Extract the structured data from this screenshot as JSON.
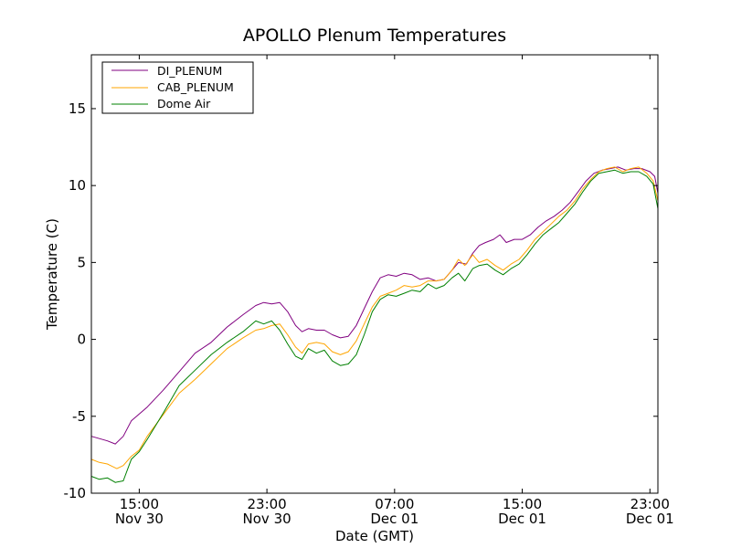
{
  "chart_data": {
    "type": "line",
    "title": "APOLLO Plenum Temperatures",
    "xlabel": "Date (GMT)",
    "ylabel": "Temperature (C)",
    "x_unit": "hours since Nov 30 00:00 GMT",
    "xlim": [
      12.0,
      47.5
    ],
    "ylim": [
      -10,
      18.5
    ],
    "grid": false,
    "legend_position": "top-left",
    "x_ticks": [
      {
        "value": 15,
        "time": "15:00",
        "date": "Nov 30"
      },
      {
        "value": 23,
        "time": "23:00",
        "date": "Nov 30"
      },
      {
        "value": 31,
        "time": "07:00",
        "date": "Dec 01"
      },
      {
        "value": 39,
        "time": "15:00",
        "date": "Dec 01"
      },
      {
        "value": 47,
        "time": "23:00",
        "date": "Dec 01"
      }
    ],
    "y_ticks": [
      {
        "value": -10,
        "label": "-10"
      },
      {
        "value": -5,
        "label": "-5"
      },
      {
        "value": 0,
        "label": "0"
      },
      {
        "value": 5,
        "label": "5"
      },
      {
        "value": 10,
        "label": "10"
      },
      {
        "value": 15,
        "label": "15"
      }
    ],
    "series": [
      {
        "name": "DI_PLENUM",
        "color": "#800080",
        "points": [
          [
            12.0,
            -6.3
          ],
          [
            13.0,
            -6.6
          ],
          [
            13.5,
            -6.8
          ],
          [
            14.0,
            -6.3
          ],
          [
            14.5,
            -5.3
          ],
          [
            15.5,
            -4.4
          ],
          [
            16.5,
            -3.3
          ],
          [
            17.5,
            -2.1
          ],
          [
            18.5,
            -0.9
          ],
          [
            19.5,
            -0.2
          ],
          [
            20.5,
            0.8
          ],
          [
            21.5,
            1.6
          ],
          [
            22.3,
            2.2
          ],
          [
            22.8,
            2.4
          ],
          [
            23.3,
            2.3
          ],
          [
            23.8,
            2.4
          ],
          [
            24.3,
            1.8
          ],
          [
            24.8,
            0.9
          ],
          [
            25.2,
            0.5
          ],
          [
            25.6,
            0.7
          ],
          [
            26.1,
            0.6
          ],
          [
            26.6,
            0.6
          ],
          [
            27.1,
            0.3
          ],
          [
            27.6,
            0.1
          ],
          [
            28.1,
            0.2
          ],
          [
            28.6,
            0.9
          ],
          [
            29.1,
            2.0
          ],
          [
            29.6,
            3.1
          ],
          [
            30.1,
            4.0
          ],
          [
            30.6,
            4.2
          ],
          [
            31.1,
            4.1
          ],
          [
            31.6,
            4.3
          ],
          [
            32.1,
            4.2
          ],
          [
            32.6,
            3.9
          ],
          [
            33.1,
            4.0
          ],
          [
            33.6,
            3.8
          ],
          [
            34.1,
            3.9
          ],
          [
            34.6,
            4.5
          ],
          [
            35.0,
            5.0
          ],
          [
            35.5,
            4.9
          ],
          [
            35.9,
            5.6
          ],
          [
            36.3,
            6.1
          ],
          [
            36.7,
            6.3
          ],
          [
            37.2,
            6.5
          ],
          [
            37.6,
            6.8
          ],
          [
            38.0,
            6.3
          ],
          [
            38.5,
            6.5
          ],
          [
            39.0,
            6.5
          ],
          [
            39.5,
            6.8
          ],
          [
            40.0,
            7.3
          ],
          [
            40.5,
            7.7
          ],
          [
            41.0,
            8.0
          ],
          [
            41.5,
            8.4
          ],
          [
            42.0,
            8.9
          ],
          [
            42.5,
            9.6
          ],
          [
            43.0,
            10.3
          ],
          [
            43.5,
            10.8
          ],
          [
            44.0,
            11.0
          ],
          [
            44.5,
            11.1
          ],
          [
            45.0,
            11.2
          ],
          [
            45.5,
            11.0
          ],
          [
            46.0,
            11.1
          ],
          [
            46.5,
            11.1
          ],
          [
            47.0,
            10.9
          ],
          [
            47.3,
            10.6
          ],
          [
            47.5,
            9.5
          ]
        ]
      },
      {
        "name": "CAB_PLENUM",
        "color": "#ffa500",
        "points": [
          [
            12.0,
            -7.8
          ],
          [
            12.5,
            -8.0
          ],
          [
            13.0,
            -8.1
          ],
          [
            13.6,
            -8.4
          ],
          [
            14.0,
            -8.2
          ],
          [
            14.5,
            -7.6
          ],
          [
            15.0,
            -7.2
          ],
          [
            15.5,
            -6.3
          ],
          [
            16.5,
            -4.9
          ],
          [
            17.5,
            -3.5
          ],
          [
            18.5,
            -2.6
          ],
          [
            19.5,
            -1.6
          ],
          [
            20.5,
            -0.6
          ],
          [
            21.5,
            0.1
          ],
          [
            22.3,
            0.6
          ],
          [
            22.8,
            0.7
          ],
          [
            23.3,
            0.9
          ],
          [
            23.8,
            1.0
          ],
          [
            24.3,
            0.3
          ],
          [
            24.8,
            -0.5
          ],
          [
            25.2,
            -0.9
          ],
          [
            25.6,
            -0.3
          ],
          [
            26.1,
            -0.2
          ],
          [
            26.6,
            -0.3
          ],
          [
            27.1,
            -0.8
          ],
          [
            27.6,
            -1.0
          ],
          [
            28.1,
            -0.8
          ],
          [
            28.6,
            -0.1
          ],
          [
            29.1,
            1.0
          ],
          [
            29.6,
            2.1
          ],
          [
            30.1,
            2.8
          ],
          [
            30.6,
            3.0
          ],
          [
            31.1,
            3.2
          ],
          [
            31.6,
            3.5
          ],
          [
            32.1,
            3.4
          ],
          [
            32.6,
            3.5
          ],
          [
            33.1,
            3.8
          ],
          [
            33.6,
            3.8
          ],
          [
            34.1,
            3.9
          ],
          [
            34.6,
            4.5
          ],
          [
            35.0,
            5.2
          ],
          [
            35.4,
            4.8
          ],
          [
            35.9,
            5.5
          ],
          [
            36.3,
            5.0
          ],
          [
            36.8,
            5.2
          ],
          [
            37.3,
            4.8
          ],
          [
            37.8,
            4.5
          ],
          [
            38.3,
            4.9
          ],
          [
            38.8,
            5.2
          ],
          [
            39.3,
            5.8
          ],
          [
            39.8,
            6.5
          ],
          [
            40.3,
            7.0
          ],
          [
            40.8,
            7.5
          ],
          [
            41.3,
            8.0
          ],
          [
            41.8,
            8.4
          ],
          [
            42.3,
            9.0
          ],
          [
            42.8,
            9.8
          ],
          [
            43.3,
            10.4
          ],
          [
            43.8,
            10.9
          ],
          [
            44.3,
            11.1
          ],
          [
            44.8,
            11.2
          ],
          [
            45.3,
            10.9
          ],
          [
            45.8,
            11.1
          ],
          [
            46.3,
            11.2
          ],
          [
            46.8,
            10.8
          ],
          [
            47.2,
            10.3
          ],
          [
            47.5,
            9.0
          ]
        ]
      },
      {
        "name": "Dome Air",
        "color": "#008000",
        "points": [
          [
            12.0,
            -8.9
          ],
          [
            12.5,
            -9.1
          ],
          [
            13.0,
            -9.0
          ],
          [
            13.5,
            -9.3
          ],
          [
            14.0,
            -9.2
          ],
          [
            14.5,
            -7.8
          ],
          [
            15.0,
            -7.3
          ],
          [
            15.5,
            -6.5
          ],
          [
            16.5,
            -4.8
          ],
          [
            17.5,
            -3.0
          ],
          [
            18.5,
            -2.0
          ],
          [
            19.5,
            -1.0
          ],
          [
            20.5,
            -0.2
          ],
          [
            21.5,
            0.5
          ],
          [
            22.3,
            1.2
          ],
          [
            22.8,
            1.0
          ],
          [
            23.3,
            1.2
          ],
          [
            23.8,
            0.6
          ],
          [
            24.3,
            -0.3
          ],
          [
            24.8,
            -1.1
          ],
          [
            25.2,
            -1.3
          ],
          [
            25.6,
            -0.6
          ],
          [
            26.1,
            -0.9
          ],
          [
            26.6,
            -0.7
          ],
          [
            27.1,
            -1.4
          ],
          [
            27.6,
            -1.7
          ],
          [
            28.1,
            -1.6
          ],
          [
            28.6,
            -1.0
          ],
          [
            29.1,
            0.3
          ],
          [
            29.6,
            1.8
          ],
          [
            30.1,
            2.6
          ],
          [
            30.6,
            2.9
          ],
          [
            31.1,
            2.8
          ],
          [
            31.6,
            3.0
          ],
          [
            32.1,
            3.2
          ],
          [
            32.6,
            3.1
          ],
          [
            33.1,
            3.6
          ],
          [
            33.6,
            3.3
          ],
          [
            34.1,
            3.5
          ],
          [
            34.6,
            4.0
          ],
          [
            35.0,
            4.3
          ],
          [
            35.4,
            3.8
          ],
          [
            35.9,
            4.6
          ],
          [
            36.3,
            4.8
          ],
          [
            36.8,
            4.9
          ],
          [
            37.3,
            4.5
          ],
          [
            37.8,
            4.2
          ],
          [
            38.3,
            4.6
          ],
          [
            38.8,
            4.9
          ],
          [
            39.3,
            5.5
          ],
          [
            39.8,
            6.2
          ],
          [
            40.3,
            6.8
          ],
          [
            40.8,
            7.2
          ],
          [
            41.3,
            7.6
          ],
          [
            41.8,
            8.2
          ],
          [
            42.3,
            8.8
          ],
          [
            42.8,
            9.6
          ],
          [
            43.3,
            10.3
          ],
          [
            43.8,
            10.8
          ],
          [
            44.3,
            10.9
          ],
          [
            44.8,
            11.0
          ],
          [
            45.3,
            10.8
          ],
          [
            45.8,
            10.9
          ],
          [
            46.3,
            10.9
          ],
          [
            46.8,
            10.6
          ],
          [
            47.2,
            10.1
          ],
          [
            47.5,
            8.5
          ]
        ]
      }
    ]
  }
}
